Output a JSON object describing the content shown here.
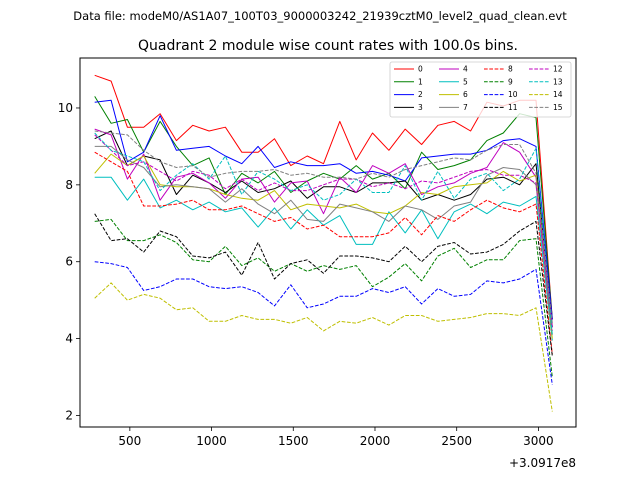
{
  "chart_data": {
    "type": "line",
    "suptitle": "Data file: modeM0/AS1A07_100T03_9000003242_21939cztM0_level2_quad_clean.evt",
    "title": "Quadrant 2 module wise count rates with 100.0s bins.",
    "xlabel": "",
    "ylabel": "",
    "offset_label": "+3.0917e8",
    "xlim": [
      195,
      3230
    ],
    "ylim": [
      1.7,
      11.3
    ],
    "xticks": [
      500,
      1000,
      1500,
      2000,
      2500,
      3000
    ],
    "yticks": [
      2,
      4,
      6,
      8,
      10
    ],
    "grid": false,
    "legend_position": "top-right",
    "x": [
      285,
      385,
      485,
      585,
      685,
      785,
      885,
      985,
      1085,
      1185,
      1285,
      1385,
      1485,
      1585,
      1685,
      1785,
      1885,
      1985,
      2085,
      2185,
      2285,
      2385,
      2485,
      2585,
      2685,
      2785,
      2885,
      2985,
      3085
    ],
    "series": [
      {
        "name": "0",
        "color": "#ff0000",
        "style": "solid",
        "values": [
          10.85,
          10.7,
          9.5,
          9.5,
          9.85,
          9.15,
          9.55,
          9.4,
          9.5,
          8.85,
          8.85,
          9.2,
          8.5,
          8.75,
          8.55,
          9.65,
          8.65,
          9.35,
          8.9,
          9.45,
          9.05,
          9.55,
          9.65,
          9.4,
          10.15,
          10.05,
          10.2,
          10.2,
          4.5
        ]
      },
      {
        "name": "1",
        "color": "#008000",
        "style": "solid",
        "values": [
          10.3,
          9.6,
          9.7,
          8.85,
          9.65,
          9.0,
          8.5,
          8.7,
          7.75,
          8.3,
          8.05,
          8.35,
          7.8,
          8.1,
          8.3,
          8.15,
          8.5,
          8.15,
          8.3,
          7.9,
          8.85,
          8.4,
          8.5,
          8.65,
          9.15,
          9.35,
          9.85,
          9.75,
          4.5
        ]
      },
      {
        "name": "2",
        "color": "#0000ff",
        "style": "solid",
        "values": [
          10.15,
          10.2,
          8.6,
          8.85,
          9.8,
          8.9,
          8.95,
          9.0,
          8.75,
          8.55,
          9.0,
          8.45,
          8.6,
          8.5,
          8.5,
          8.55,
          8.3,
          8.35,
          8.25,
          8.1,
          8.7,
          8.75,
          8.8,
          8.8,
          8.9,
          9.15,
          9.2,
          9.0,
          4.5
        ]
      },
      {
        "name": "3",
        "color": "#000000",
        "style": "solid",
        "values": [
          9.2,
          9.4,
          8.5,
          8.75,
          8.65,
          7.75,
          8.25,
          8.05,
          7.8,
          8.1,
          7.8,
          7.9,
          8.1,
          7.65,
          7.95,
          7.95,
          7.8,
          8.05,
          8.05,
          8.1,
          7.6,
          7.75,
          7.6,
          7.75,
          8.15,
          8.2,
          8.0,
          8.55,
          4.3
        ]
      },
      {
        "name": "4",
        "color": "#bf00bf",
        "style": "solid",
        "values": [
          9.45,
          9.3,
          8.15,
          8.8,
          7.6,
          8.2,
          8.3,
          8.05,
          7.65,
          8.15,
          8.2,
          7.55,
          8.05,
          8.1,
          7.25,
          8.2,
          7.8,
          8.5,
          8.3,
          8.55,
          7.75,
          7.95,
          8.05,
          8.3,
          8.45,
          9.1,
          8.85,
          8.2,
          4.3
        ]
      },
      {
        "name": "5",
        "color": "#00bfbf",
        "style": "solid",
        "values": [
          8.2,
          8.2,
          7.6,
          8.15,
          7.4,
          7.6,
          7.35,
          7.55,
          7.3,
          7.4,
          6.9,
          7.4,
          6.85,
          7.35,
          6.95,
          7.2,
          6.45,
          6.45,
          7.3,
          6.75,
          7.35,
          6.6,
          7.3,
          7.5,
          7.25,
          7.55,
          7.45,
          7.7,
          3.95
        ]
      },
      {
        "name": "6",
        "color": "#bfbf00",
        "style": "solid",
        "values": [
          8.3,
          8.8,
          8.5,
          8.75,
          8.0,
          7.95,
          7.95,
          7.9,
          7.75,
          7.65,
          7.6,
          7.85,
          7.35,
          7.5,
          7.45,
          7.4,
          7.5,
          7.3,
          7.25,
          7.45,
          7.8,
          7.75,
          7.95,
          8.0,
          8.05,
          8.35,
          8.1,
          8.25,
          4.0
        ]
      },
      {
        "name": "7",
        "color": "#808080",
        "style": "solid",
        "values": [
          9.0,
          9.0,
          8.65,
          8.45,
          7.95,
          8.0,
          7.95,
          7.9,
          7.55,
          7.9,
          7.5,
          7.25,
          7.6,
          7.1,
          7.05,
          7.5,
          7.4,
          7.3,
          7.05,
          7.45,
          7.35,
          7.1,
          7.45,
          7.55,
          8.25,
          8.45,
          8.4,
          8.0,
          4.1
        ]
      },
      {
        "name": "8",
        "color": "#ff0000",
        "style": "dashed",
        "values": [
          8.85,
          8.6,
          8.35,
          7.45,
          7.45,
          7.5,
          7.6,
          7.35,
          7.35,
          7.45,
          7.25,
          7.05,
          7.15,
          6.85,
          6.95,
          6.65,
          6.65,
          6.65,
          6.75,
          7.15,
          6.7,
          7.2,
          7.05,
          7.35,
          7.6,
          7.4,
          7.3,
          7.5,
          3.6
        ]
      },
      {
        "name": "9",
        "color": "#008000",
        "style": "dashed",
        "values": [
          7.05,
          7.1,
          6.55,
          6.55,
          6.7,
          6.5,
          6.05,
          6.0,
          6.4,
          5.9,
          6.1,
          5.75,
          5.95,
          5.75,
          5.9,
          5.8,
          5.9,
          5.35,
          5.6,
          5.95,
          5.5,
          6.15,
          6.35,
          5.85,
          6.05,
          6.05,
          6.55,
          6.6,
          3.0
        ]
      },
      {
        "name": "10",
        "color": "#0000ff",
        "style": "dashed",
        "values": [
          6.0,
          5.95,
          5.85,
          5.25,
          5.35,
          5.55,
          5.55,
          5.35,
          5.3,
          5.35,
          5.2,
          4.85,
          5.4,
          4.8,
          4.9,
          5.1,
          5.1,
          5.3,
          5.2,
          5.35,
          4.9,
          5.3,
          5.1,
          5.15,
          5.5,
          5.45,
          5.55,
          5.8,
          2.8
        ]
      },
      {
        "name": "11",
        "color": "#000000",
        "style": "dashed",
        "values": [
          7.25,
          6.55,
          6.6,
          6.25,
          6.8,
          6.65,
          6.15,
          6.1,
          6.25,
          5.65,
          6.5,
          5.55,
          5.95,
          6.05,
          5.7,
          6.15,
          6.15,
          6.1,
          6.0,
          6.4,
          6.0,
          6.4,
          6.5,
          6.2,
          6.25,
          6.45,
          6.8,
          7.05,
          3.55
        ]
      },
      {
        "name": "12",
        "color": "#bf00bf",
        "style": "dashed",
        "values": [
          9.3,
          8.9,
          8.5,
          8.6,
          8.35,
          8.1,
          8.35,
          8.25,
          7.9,
          8.15,
          7.85,
          8.05,
          7.85,
          7.85,
          8.0,
          8.15,
          8.15,
          7.95,
          8.05,
          7.9,
          8.1,
          8.05,
          8.2,
          8.35,
          8.4,
          8.25,
          8.25,
          8.05,
          4.2
        ]
      },
      {
        "name": "13",
        "color": "#00bfbf",
        "style": "dashed",
        "values": [
          9.35,
          8.9,
          8.75,
          8.6,
          7.85,
          8.25,
          8.55,
          8.15,
          8.75,
          7.75,
          8.35,
          8.15,
          7.85,
          8.0,
          7.6,
          7.75,
          8.15,
          7.8,
          7.8,
          8.5,
          7.6,
          8.35,
          7.65,
          8.15,
          8.3,
          7.85,
          8.15,
          8.95,
          4.1
        ]
      },
      {
        "name": "14",
        "color": "#bfbf00",
        "style": "dashed",
        "values": [
          5.05,
          5.45,
          5.0,
          5.15,
          5.05,
          4.75,
          4.8,
          4.45,
          4.45,
          4.6,
          4.5,
          4.5,
          4.4,
          4.55,
          4.2,
          4.45,
          4.4,
          4.55,
          4.35,
          4.6,
          4.6,
          4.45,
          4.5,
          4.55,
          4.65,
          4.65,
          4.6,
          4.8,
          2.1
        ]
      },
      {
        "name": "15",
        "color": "#808080",
        "style": "dashed",
        "values": [
          9.4,
          9.35,
          9.3,
          8.9,
          8.6,
          8.45,
          8.5,
          8.2,
          8.3,
          8.35,
          8.35,
          8.4,
          8.25,
          8.3,
          8.2,
          8.2,
          8.15,
          8.3,
          8.2,
          8.4,
          8.5,
          8.6,
          8.7,
          8.65,
          8.9,
          9.05,
          9.05,
          8.3,
          4.4
        ]
      }
    ]
  }
}
